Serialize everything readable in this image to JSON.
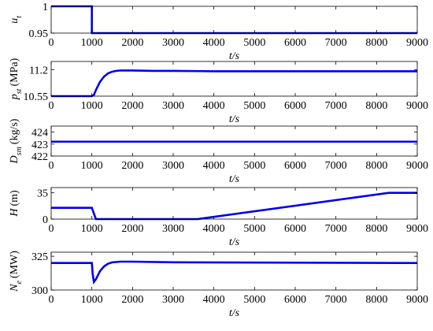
{
  "chart_data": [
    {
      "type": "line",
      "xlabel": "t/s",
      "ylabel": {
        "main": "u",
        "sub": "t"
      },
      "x": [
        0,
        1000,
        1000,
        9000
      ],
      "values": [
        1,
        1,
        0.95,
        0.95
      ],
      "color": "#0000ee",
      "xlim": [
        0,
        9000
      ],
      "xticks": [
        0,
        1000,
        2000,
        3000,
        4000,
        5000,
        6000,
        7000,
        8000,
        9000
      ],
      "ylim": [
        0.95,
        1
      ],
      "yticks": [
        0.95,
        1
      ]
    },
    {
      "type": "line",
      "xlabel": "t/s",
      "ylabel": {
        "main": "p",
        "sub": "st",
        "unit": "(MPa)"
      },
      "x": [
        0,
        1000,
        1050,
        1100,
        1200,
        1300,
        1400,
        1500,
        1600,
        1700,
        1800,
        2000,
        2500,
        3000,
        4000,
        9000
      ],
      "values": [
        10.55,
        10.55,
        10.58,
        10.7,
        10.9,
        11.03,
        11.11,
        11.15,
        11.17,
        11.18,
        11.18,
        11.18,
        11.17,
        11.17,
        11.16,
        11.16
      ],
      "color": "#0000ee",
      "xlim": [
        0,
        9000
      ],
      "xticks": [
        0,
        1000,
        2000,
        3000,
        4000,
        5000,
        6000,
        7000,
        8000,
        9000
      ],
      "ylim": [
        10.55,
        11.4
      ],
      "yticks": [
        10.55,
        11.2
      ]
    },
    {
      "type": "line",
      "xlabel": "t/s",
      "ylabel": {
        "main": "D",
        "sub": "sm",
        "unit": "(kg/s)"
      },
      "x": [
        0,
        9000
      ],
      "values": [
        423.2,
        423.2
      ],
      "color": "#0000ee",
      "xlim": [
        0,
        9000
      ],
      "xticks": [
        0,
        1000,
        2000,
        3000,
        4000,
        5000,
        6000,
        7000,
        8000,
        9000
      ],
      "ylim": [
        422,
        424.5
      ],
      "yticks": [
        422,
        423,
        424
      ]
    },
    {
      "type": "line",
      "xlabel": "t/s",
      "ylabel": {
        "main": "H",
        "unit": "(m)"
      },
      "x": [
        0,
        1000,
        1100,
        3600,
        8300,
        9000
      ],
      "values": [
        15,
        15,
        0,
        0,
        35,
        35
      ],
      "color": "#0000ee",
      "xlim": [
        0,
        9000
      ],
      "xticks": [
        0,
        1000,
        2000,
        3000,
        4000,
        5000,
        6000,
        7000,
        8000,
        9000
      ],
      "ylim": [
        0,
        42
      ],
      "yticks": [
        0,
        35
      ]
    },
    {
      "type": "line",
      "xlabel": "t/s",
      "ylabel": {
        "main": "N",
        "sub": "e",
        "unit": "(MW)"
      },
      "x": [
        0,
        1000,
        1020,
        1050,
        1100,
        1200,
        1300,
        1400,
        1500,
        1700,
        2000,
        3000,
        9000
      ],
      "values": [
        320,
        320,
        312,
        306,
        308,
        314,
        317.5,
        319.5,
        320.5,
        321,
        321,
        320.5,
        320
      ],
      "color": "#0000ee",
      "xlim": [
        0,
        9000
      ],
      "xticks": [
        0,
        1000,
        2000,
        3000,
        4000,
        5000,
        6000,
        7000,
        8000,
        9000
      ],
      "ylim": [
        300,
        328
      ],
      "yticks": [
        300,
        325
      ]
    }
  ]
}
